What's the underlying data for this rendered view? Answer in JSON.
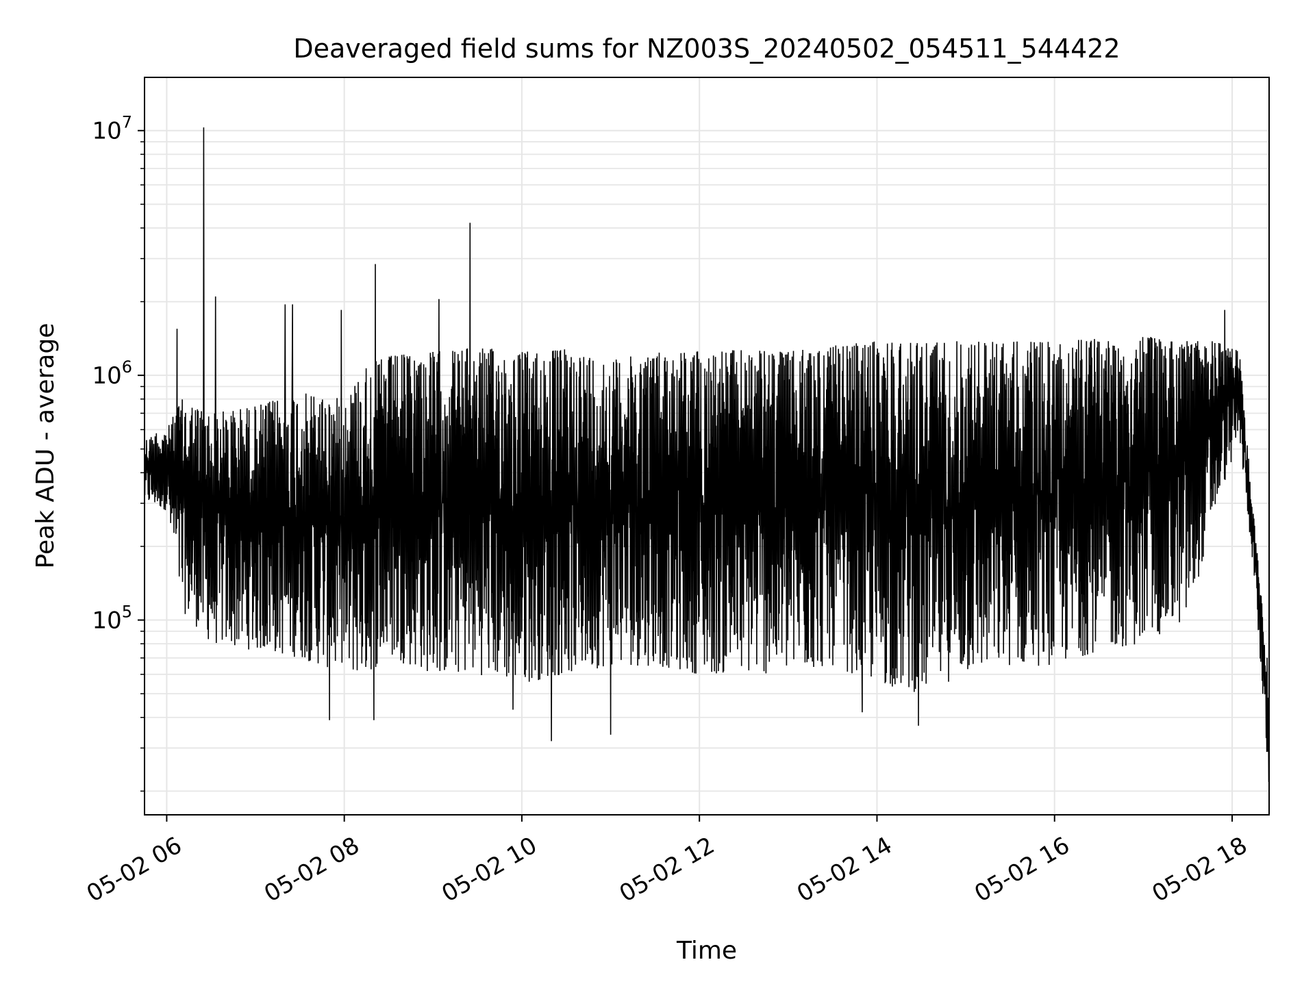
{
  "chart_data": {
    "type": "line",
    "title": "Deaveraged field sums for NZ003S_20240502_054511_544422",
    "xlabel": "Time",
    "ylabel": "Peak ADU - average",
    "yscale": "log",
    "ylim": [
      16000,
      16500000
    ],
    "xlim": [
      "2024-05-02 05:45",
      "2024-05-02 18:25"
    ],
    "grid": true,
    "x_ticks": [
      {
        "value": "2024-05-02 06:00",
        "label": "05-02 06"
      },
      {
        "value": "2024-05-02 08:00",
        "label": "05-02 08"
      },
      {
        "value": "2024-05-02 10:00",
        "label": "05-02 10"
      },
      {
        "value": "2024-05-02 12:00",
        "label": "05-02 12"
      },
      {
        "value": "2024-05-02 14:00",
        "label": "05-02 14"
      },
      {
        "value": "2024-05-02 16:00",
        "label": "05-02 16"
      },
      {
        "value": "2024-05-02 18:00",
        "label": "05-02 18"
      }
    ],
    "y_ticks": [
      {
        "value": 100000,
        "base": "10",
        "exp": "5"
      },
      {
        "value": 1000000,
        "base": "10",
        "exp": "6"
      },
      {
        "value": 10000000,
        "base": "10",
        "exp": "7"
      }
    ],
    "series": [
      {
        "color": "#000000",
        "envelope": {
          "x": [
            "2024-05-02 05:45",
            "2024-05-02 06:00",
            "2024-05-02 06:10",
            "2024-05-02 06:30",
            "2024-05-02 07:00",
            "2024-05-02 07:30",
            "2024-05-02 08:00",
            "2024-05-02 08:15",
            "2024-05-02 08:30",
            "2024-05-02 09:00",
            "2024-05-02 09:30",
            "2024-05-02 10:00",
            "2024-05-02 10:30",
            "2024-05-02 11:00",
            "2024-05-02 11:30",
            "2024-05-02 12:00",
            "2024-05-02 12:30",
            "2024-05-02 13:00",
            "2024-05-02 13:30",
            "2024-05-02 14:00",
            "2024-05-02 14:30",
            "2024-05-02 15:00",
            "2024-05-02 15:30",
            "2024-05-02 16:00",
            "2024-05-02 16:30",
            "2024-05-02 17:00",
            "2024-05-02 17:30",
            "2024-05-02 17:50",
            "2024-05-02 18:05",
            "2024-05-02 18:15",
            "2024-05-02 18:25"
          ],
          "high": [
            550000,
            600000,
            800000,
            700000,
            750000,
            850000,
            800000,
            1100000,
            1200000,
            1250000,
            1300000,
            1250000,
            1280000,
            1150000,
            1250000,
            1260000,
            1270000,
            1250000,
            1320000,
            1380000,
            1400000,
            1380000,
            1380000,
            1370000,
            1420000,
            1440000,
            1400000,
            1380000,
            1250000,
            250000,
            60000
          ],
          "low": [
            300000,
            280000,
            110000,
            80000,
            75000,
            70000,
            60000,
            60000,
            70000,
            60000,
            60000,
            55000,
            60000,
            65000,
            65000,
            60000,
            60000,
            60000,
            65000,
            55000,
            50000,
            60000,
            65000,
            65000,
            75000,
            80000,
            100000,
            300000,
            550000,
            150000,
            20000
          ]
        },
        "spikes": [
          {
            "x": "2024-05-02 05:53",
            "y": 580000
          },
          {
            "x": "2024-05-02 06:07",
            "y": 1550000
          },
          {
            "x": "2024-05-02 06:25",
            "y": 10300000
          },
          {
            "x": "2024-05-02 06:33",
            "y": 2100000
          },
          {
            "x": "2024-05-02 07:20",
            "y": 1950000
          },
          {
            "x": "2024-05-02 07:25",
            "y": 1950000
          },
          {
            "x": "2024-05-02 07:58",
            "y": 1850000
          },
          {
            "x": "2024-05-02 08:21",
            "y": 2850000
          },
          {
            "x": "2024-05-02 09:04",
            "y": 2050000
          },
          {
            "x": "2024-05-02 09:25",
            "y": 4200000
          },
          {
            "x": "2024-05-02 17:55",
            "y": 1850000
          },
          {
            "x": "2024-05-02 07:50",
            "y": 39000
          },
          {
            "x": "2024-05-02 08:20",
            "y": 39000
          },
          {
            "x": "2024-05-02 10:20",
            "y": 32000
          },
          {
            "x": "2024-05-02 11:00",
            "y": 34000
          },
          {
            "x": "2024-05-02 14:28",
            "y": 37000
          },
          {
            "x": "2024-05-02 09:54",
            "y": 43000
          },
          {
            "x": "2024-05-02 13:50",
            "y": 42000
          }
        ]
      }
    ]
  }
}
